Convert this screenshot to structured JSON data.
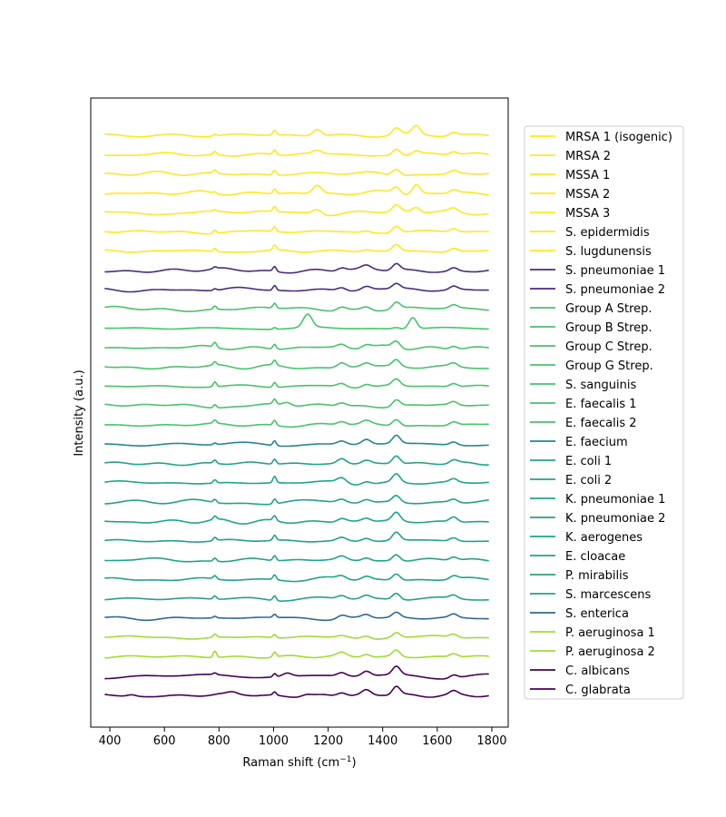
{
  "chart_data": {
    "type": "line",
    "title": "",
    "xlabel": "Raman shift (cm",
    "xlabel_sup": "−1",
    "xlabel_suffix": ")",
    "ylabel": "Intensity (a.u.)",
    "xlim": [
      330,
      1860
    ],
    "xticks": [
      400,
      600,
      800,
      1000,
      1200,
      1400,
      1600,
      1800
    ],
    "x_range": [
      381,
      1792
    ],
    "y_ticks_shown": false,
    "grid": false,
    "legend_position": "outside-right",
    "colors": {
      "staph": "#fde725",
      "strep_pneumo": "#472d7b",
      "strep": "#4ac16d",
      "efaecium": "#25858e",
      "gram_neg": "#20a386",
      "senterica": "#31688e",
      "paeruginosa": "#a0da39",
      "candida": "#440154"
    },
    "series": [
      {
        "name": "MRSA 1 (isogenic)",
        "color_key": "staph",
        "peaks": [
          [
            785,
            1
          ],
          [
            1004,
            3
          ],
          [
            1160,
            4
          ],
          [
            1450,
            4
          ],
          [
            1523,
            5
          ],
          [
            1660,
            2
          ]
        ]
      },
      {
        "name": "MRSA 2",
        "color_key": "staph",
        "peaks": [
          [
            785,
            2
          ],
          [
            1004,
            3
          ],
          [
            1160,
            2
          ],
          [
            1450,
            4
          ],
          [
            1523,
            2
          ],
          [
            1660,
            2
          ]
        ]
      },
      {
        "name": "MSSA 1",
        "color_key": "staph",
        "peaks": [
          [
            785,
            2
          ],
          [
            1004,
            3
          ],
          [
            1450,
            4
          ],
          [
            1660,
            2
          ]
        ]
      },
      {
        "name": "MSSA 2",
        "color_key": "staph",
        "peaks": [
          [
            785,
            1
          ],
          [
            1004,
            3
          ],
          [
            1160,
            5
          ],
          [
            1450,
            4
          ],
          [
            1523,
            6
          ],
          [
            1660,
            2
          ]
        ]
      },
      {
        "name": "MSSA 3",
        "color_key": "staph",
        "peaks": [
          [
            785,
            1
          ],
          [
            1004,
            3
          ],
          [
            1160,
            3
          ],
          [
            1450,
            4
          ],
          [
            1523,
            3
          ],
          [
            1660,
            2
          ]
        ]
      },
      {
        "name": "S. epidermidis",
        "color_key": "staph",
        "peaks": [
          [
            785,
            2
          ],
          [
            1004,
            3
          ],
          [
            1340,
            1
          ],
          [
            1450,
            4
          ],
          [
            1660,
            2
          ]
        ]
      },
      {
        "name": "S. lugdunensis",
        "color_key": "staph",
        "peaks": [
          [
            785,
            2
          ],
          [
            1004,
            3
          ],
          [
            1340,
            1
          ],
          [
            1450,
            4
          ],
          [
            1660,
            2
          ]
        ]
      },
      {
        "name": "S. pneumoniae 1",
        "color_key": "strep_pneumo",
        "peaks": [
          [
            785,
            1
          ],
          [
            1004,
            3
          ],
          [
            1250,
            2
          ],
          [
            1340,
            2
          ],
          [
            1450,
            4
          ],
          [
            1660,
            2
          ]
        ]
      },
      {
        "name": "S. pneumoniae 2",
        "color_key": "strep_pneumo",
        "peaks": [
          [
            785,
            1
          ],
          [
            1004,
            3
          ],
          [
            1250,
            2
          ],
          [
            1340,
            2
          ],
          [
            1450,
            3
          ],
          [
            1660,
            2
          ]
        ]
      },
      {
        "name": "Group A Strep.",
        "color_key": "strep",
        "peaks": [
          [
            785,
            2
          ],
          [
            1004,
            3
          ],
          [
            1250,
            2
          ],
          [
            1340,
            2
          ],
          [
            1450,
            4
          ],
          [
            1660,
            2
          ]
        ]
      },
      {
        "name": "Group B Strep.",
        "color_key": "strep",
        "peaks": [
          [
            1004,
            1
          ],
          [
            1125,
            8
          ],
          [
            1450,
            1
          ],
          [
            1510,
            7
          ]
        ]
      },
      {
        "name": "Group C Strep.",
        "color_key": "strep",
        "peaks": [
          [
            785,
            3
          ],
          [
            1004,
            3
          ],
          [
            1250,
            2
          ],
          [
            1340,
            2
          ],
          [
            1450,
            4
          ],
          [
            1660,
            2
          ]
        ]
      },
      {
        "name": "Group G Strep.",
        "color_key": "strep",
        "peaks": [
          [
            785,
            2
          ],
          [
            1004,
            3
          ],
          [
            1250,
            3
          ],
          [
            1340,
            2
          ],
          [
            1450,
            4
          ],
          [
            1660,
            2
          ]
        ]
      },
      {
        "name": "S. sanguinis",
        "color_key": "strep",
        "peaks": [
          [
            785,
            3
          ],
          [
            1004,
            3
          ],
          [
            1250,
            2
          ],
          [
            1340,
            2
          ],
          [
            1450,
            4
          ],
          [
            1660,
            2
          ]
        ]
      },
      {
        "name": "E. faecalis 1",
        "color_key": "strep",
        "peaks": [
          [
            785,
            2
          ],
          [
            1004,
            3
          ],
          [
            1050,
            2
          ],
          [
            1250,
            2
          ],
          [
            1450,
            4
          ],
          [
            1660,
            2
          ]
        ]
      },
      {
        "name": "E. faecalis 2",
        "color_key": "strep",
        "peaks": [
          [
            785,
            2
          ],
          [
            1004,
            3
          ],
          [
            1250,
            2
          ],
          [
            1340,
            2
          ],
          [
            1450,
            4
          ],
          [
            1660,
            2
          ]
        ]
      },
      {
        "name": "E. faecium",
        "color_key": "efaecium",
        "peaks": [
          [
            785,
            1
          ],
          [
            1004,
            3
          ],
          [
            1250,
            2
          ],
          [
            1340,
            3
          ],
          [
            1450,
            5
          ],
          [
            1660,
            2
          ]
        ]
      },
      {
        "name": "E. coli 1",
        "color_key": "gram_neg",
        "peaks": [
          [
            785,
            2
          ],
          [
            1004,
            3
          ],
          [
            1250,
            3
          ],
          [
            1340,
            2
          ],
          [
            1450,
            5
          ],
          [
            1660,
            2
          ]
        ]
      },
      {
        "name": "E. coli 2",
        "color_key": "gram_neg",
        "peaks": [
          [
            785,
            2
          ],
          [
            1004,
            4
          ],
          [
            1250,
            3
          ],
          [
            1340,
            2
          ],
          [
            1450,
            5
          ],
          [
            1660,
            2
          ]
        ]
      },
      {
        "name": "K. pneumoniae 1",
        "color_key": "gram_neg",
        "peaks": [
          [
            785,
            2
          ],
          [
            1004,
            3
          ],
          [
            1250,
            2
          ],
          [
            1340,
            2
          ],
          [
            1450,
            4
          ],
          [
            1660,
            2
          ]
        ]
      },
      {
        "name": "K. pneumoniae 2",
        "color_key": "gram_neg",
        "peaks": [
          [
            785,
            2
          ],
          [
            1004,
            3
          ],
          [
            1250,
            2
          ],
          [
            1340,
            2
          ],
          [
            1450,
            5
          ],
          [
            1660,
            3
          ]
        ]
      },
      {
        "name": "K. aerogenes",
        "color_key": "gram_neg",
        "peaks": [
          [
            785,
            2
          ],
          [
            1004,
            3
          ],
          [
            1250,
            2
          ],
          [
            1340,
            2
          ],
          [
            1450,
            5
          ],
          [
            1660,
            2
          ]
        ]
      },
      {
        "name": "E. cloacae",
        "color_key": "gram_neg",
        "peaks": [
          [
            785,
            2
          ],
          [
            1004,
            3
          ],
          [
            1250,
            2
          ],
          [
            1340,
            2
          ],
          [
            1450,
            4
          ],
          [
            1660,
            2
          ]
        ]
      },
      {
        "name": "P. mirabilis",
        "color_key": "gram_neg",
        "peaks": [
          [
            785,
            2
          ],
          [
            1004,
            3
          ],
          [
            1250,
            2
          ],
          [
            1340,
            2
          ],
          [
            1450,
            4
          ],
          [
            1660,
            2
          ]
        ]
      },
      {
        "name": "S. marcescens",
        "color_key": "gram_neg",
        "peaks": [
          [
            785,
            2
          ],
          [
            1004,
            3
          ],
          [
            1250,
            2
          ],
          [
            1340,
            2
          ],
          [
            1450,
            4
          ],
          [
            1660,
            2
          ]
        ]
      },
      {
        "name": "S. enterica",
        "color_key": "senterica",
        "peaks": [
          [
            785,
            1
          ],
          [
            1004,
            2
          ],
          [
            1250,
            2
          ],
          [
            1340,
            2
          ],
          [
            1450,
            3
          ],
          [
            1660,
            2
          ]
        ]
      },
      {
        "name": "P. aeruginosa 1",
        "color_key": "paeruginosa",
        "peaks": [
          [
            785,
            2
          ],
          [
            1004,
            2
          ],
          [
            1250,
            1
          ],
          [
            1340,
            2
          ],
          [
            1450,
            3
          ],
          [
            1660,
            2
          ]
        ]
      },
      {
        "name": "P. aeruginosa 2",
        "color_key": "paeruginosa",
        "peaks": [
          [
            785,
            4
          ],
          [
            1004,
            3
          ],
          [
            1250,
            2
          ],
          [
            1340,
            2
          ],
          [
            1450,
            4
          ],
          [
            1660,
            2
          ]
        ]
      },
      {
        "name": "C. albicans",
        "color_key": "candida",
        "peaks": [
          [
            785,
            1
          ],
          [
            1004,
            2
          ],
          [
            1050,
            2
          ],
          [
            1250,
            2
          ],
          [
            1340,
            3
          ],
          [
            1450,
            5
          ],
          [
            1660,
            2
          ]
        ]
      },
      {
        "name": "C. glabrata",
        "color_key": "candida",
        "peaks": [
          [
            480,
            1
          ],
          [
            850,
            1
          ],
          [
            1004,
            2
          ],
          [
            1120,
            1
          ],
          [
            1250,
            2
          ],
          [
            1340,
            3
          ],
          [
            1450,
            5
          ],
          [
            1660,
            2
          ]
        ]
      }
    ]
  }
}
